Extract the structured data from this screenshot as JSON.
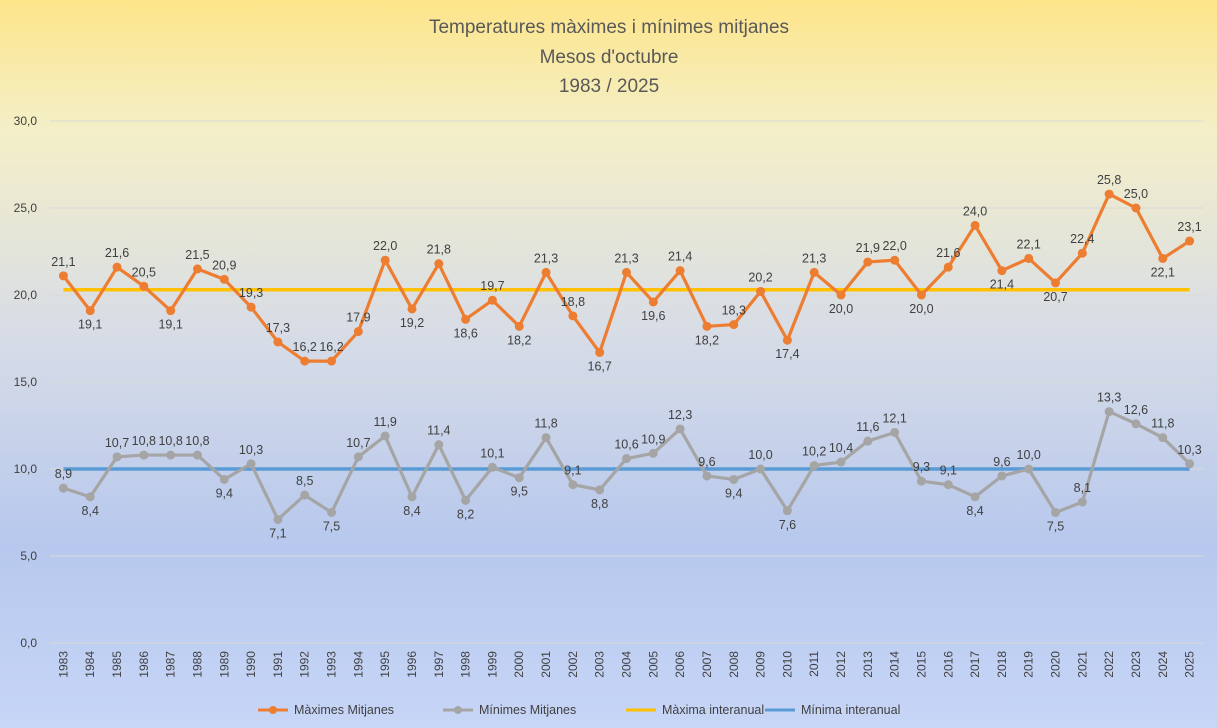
{
  "chart_data": {
    "type": "line",
    "title": [
      "Temperatures màximes i mínimes mitjanes",
      "Mesos d'octubre",
      "1983 / 2025"
    ],
    "x": [
      "1983",
      "1984",
      "1985",
      "1986",
      "1987",
      "1988",
      "1989",
      "1990",
      "1991",
      "1992",
      "1993",
      "1994",
      "1995",
      "1996",
      "1997",
      "1998",
      "1999",
      "2000",
      "2001",
      "2002",
      "2003",
      "2004",
      "2005",
      "2006",
      "2007",
      "2008",
      "2009",
      "2010",
      "2011",
      "2012",
      "2013",
      "2014",
      "2015",
      "2016",
      "2017",
      "2018",
      "2019",
      "2020",
      "2021",
      "2022",
      "2023",
      "2024",
      "2025"
    ],
    "series": [
      {
        "name": "Màximes Mitjanes",
        "color": "#ed7d31",
        "values": [
          21.1,
          19.1,
          21.6,
          20.5,
          19.1,
          21.5,
          20.9,
          19.3,
          17.3,
          16.2,
          16.2,
          17.9,
          22.0,
          19.2,
          21.8,
          18.6,
          19.7,
          18.2,
          21.3,
          18.8,
          16.7,
          21.3,
          19.6,
          21.4,
          18.2,
          18.3,
          20.2,
          17.4,
          21.3,
          20.0,
          21.9,
          22.0,
          20.0,
          21.6,
          24.0,
          21.4,
          22.1,
          20.7,
          22.4,
          25.8,
          25.0,
          22.1,
          23.1
        ]
      },
      {
        "name": "Mínimes Mitjanes",
        "color": "#a5a5a5",
        "values": [
          8.9,
          8.4,
          10.7,
          10.8,
          10.8,
          10.8,
          9.4,
          10.3,
          7.1,
          8.5,
          7.5,
          10.7,
          11.9,
          8.4,
          11.4,
          8.2,
          10.1,
          9.5,
          11.8,
          9.1,
          8.8,
          10.6,
          10.9,
          12.3,
          9.6,
          9.4,
          10.0,
          7.6,
          10.2,
          10.4,
          11.6,
          12.1,
          9.3,
          9.1,
          8.4,
          9.6,
          10.0,
          7.5,
          8.1,
          13.3,
          12.6,
          11.8,
          10.3
        ]
      },
      {
        "name": "Màxima interanual",
        "color": "#ffc000",
        "constant": 20.3
      },
      {
        "name": "Mínima interanual",
        "color": "#5b9bd5",
        "constant": 10.0
      }
    ],
    "data_labels": {
      "Màximes Mitjanes": true,
      "Mínimes Mitjanes": true
    },
    "ylim": [
      0,
      30
    ],
    "yticks": [
      "0,0",
      "5,0",
      "10,0",
      "15,0",
      "20,0",
      "25,0",
      "30,0"
    ],
    "ytick_values": [
      0,
      5,
      10,
      15,
      20,
      25,
      30
    ],
    "decimal_separator": ",",
    "grid": "horizontal",
    "legend_position": "bottom"
  }
}
